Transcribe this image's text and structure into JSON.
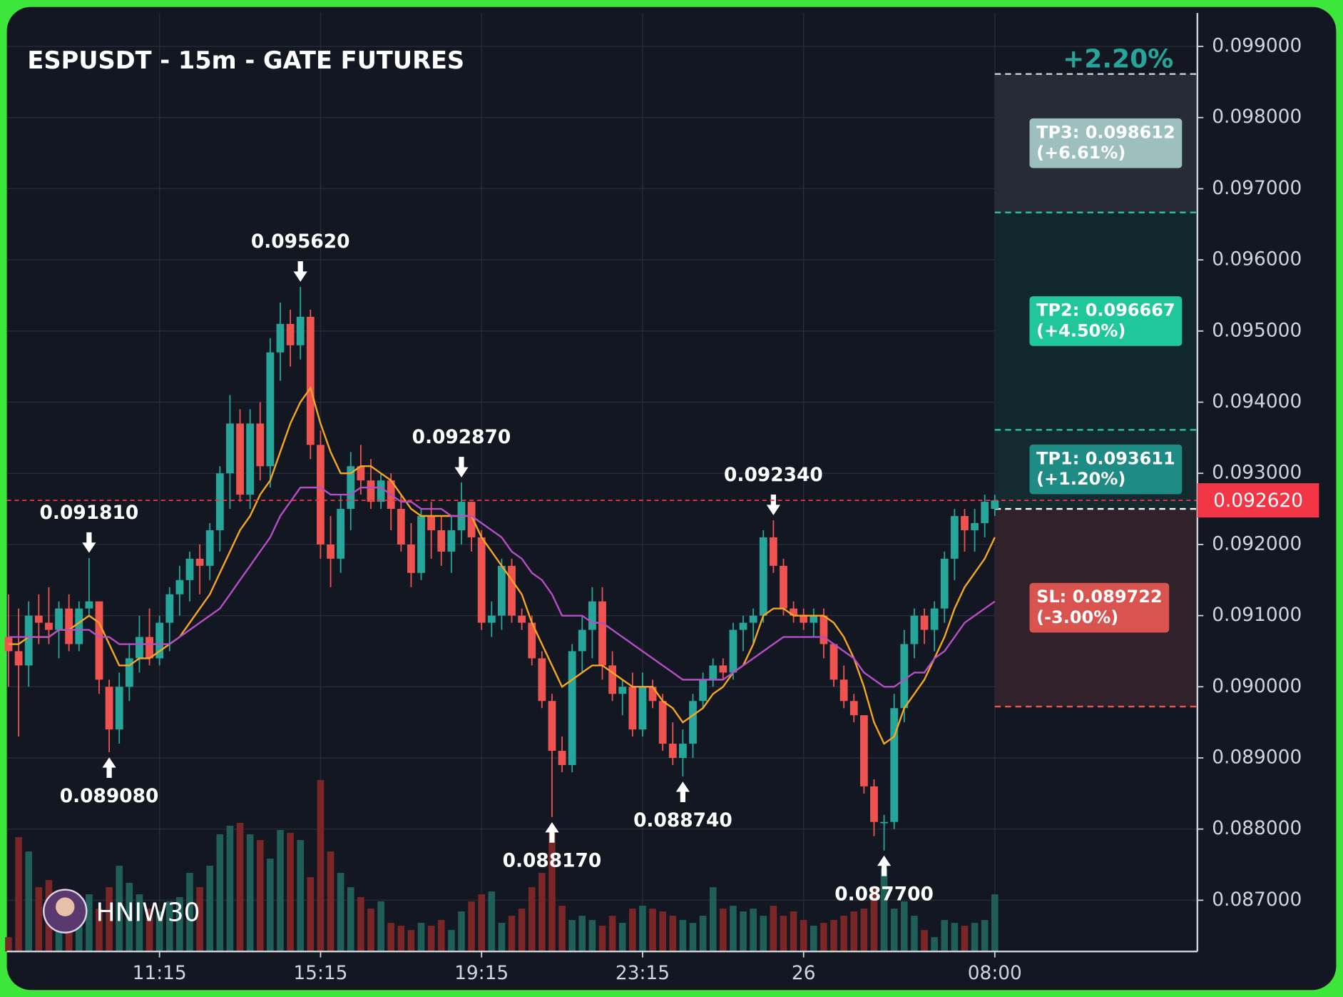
{
  "chart_data": {
    "type": "candlestick",
    "title": "ESPUSDT - 15m - GATE FUTURES",
    "watermark": "HNIW30",
    "up_color": "#26a69a",
    "down_color": "#ef5350",
    "volume_up_color": "#1f5f58",
    "volume_down_color": "#7b2626",
    "grid": true,
    "xlim": [
      -0.17,
      118.13
    ],
    "ylim": [
      0.08628,
      0.09947
    ],
    "xticks": [
      {
        "value": 15,
        "label": "11:15"
      },
      {
        "value": 31,
        "label": "15:15"
      },
      {
        "value": 47,
        "label": "19:15"
      },
      {
        "value": 63,
        "label": "23:15"
      },
      {
        "value": 79,
        "label": "26"
      },
      {
        "value": 98,
        "label": "08:00"
      }
    ],
    "yticks": [
      {
        "value": 0.087,
        "label": "0.087000"
      },
      {
        "value": 0.088,
        "label": "0.088000"
      },
      {
        "value": 0.089,
        "label": "0.089000"
      },
      {
        "value": 0.09,
        "label": "0.090000"
      },
      {
        "value": 0.091,
        "label": "0.091000"
      },
      {
        "value": 0.092,
        "label": "0.092000"
      },
      {
        "value": 0.093,
        "label": "0.093000"
      },
      {
        "value": 0.094,
        "label": "0.094000"
      },
      {
        "value": 0.095,
        "label": "0.095000"
      },
      {
        "value": 0.096,
        "label": "0.096000"
      },
      {
        "value": 0.097,
        "label": "0.097000"
      },
      {
        "value": 0.098,
        "label": "0.098000"
      },
      {
        "value": 0.099,
        "label": "0.099000"
      }
    ],
    "ohlc": [
      [
        0.0907,
        0.0913,
        0.09,
        0.0905
      ],
      [
        0.0905,
        0.0911,
        0.0893,
        0.0903
      ],
      [
        0.0903,
        0.0912,
        0.09,
        0.091
      ],
      [
        0.091,
        0.0913,
        0.0906,
        0.0909
      ],
      [
        0.0909,
        0.0914,
        0.0906,
        0.0908
      ],
      [
        0.0908,
        0.0912,
        0.0904,
        0.0911
      ],
      [
        0.0911,
        0.0913,
        0.0905,
        0.0906
      ],
      [
        0.0906,
        0.0912,
        0.0905,
        0.0911
      ],
      [
        0.0911,
        0.09181,
        0.091,
        0.0912
      ],
      [
        0.0912,
        0.0912,
        0.0899,
        0.0901
      ],
      [
        0.09,
        0.0901,
        0.08908,
        0.0894
      ],
      [
        0.0894,
        0.0902,
        0.0892,
        0.09
      ],
      [
        0.09,
        0.0906,
        0.0898,
        0.0904
      ],
      [
        0.0904,
        0.091,
        0.0902,
        0.0907
      ],
      [
        0.0907,
        0.0911,
        0.0903,
        0.0904
      ],
      [
        0.0904,
        0.091,
        0.0903,
        0.0909
      ],
      [
        0.0909,
        0.0914,
        0.0905,
        0.0913
      ],
      [
        0.0913,
        0.0917,
        0.091,
        0.0915
      ],
      [
        0.0915,
        0.0919,
        0.0912,
        0.0918
      ],
      [
        0.0918,
        0.092,
        0.0913,
        0.0917
      ],
      [
        0.0917,
        0.0923,
        0.0915,
        0.0922
      ],
      [
        0.0922,
        0.0931,
        0.0919,
        0.093
      ],
      [
        0.093,
        0.0941,
        0.0925,
        0.0937
      ],
      [
        0.0937,
        0.0939,
        0.0926,
        0.0927
      ],
      [
        0.0927,
        0.0939,
        0.0925,
        0.0937
      ],
      [
        0.0937,
        0.094,
        0.0929,
        0.0931
      ],
      [
        0.0931,
        0.0949,
        0.0928,
        0.0947
      ],
      [
        0.0947,
        0.0954,
        0.0943,
        0.0951
      ],
      [
        0.0951,
        0.0953,
        0.0945,
        0.0948
      ],
      [
        0.0948,
        0.09562,
        0.0946,
        0.0952
      ],
      [
        0.0952,
        0.0953,
        0.0932,
        0.0934
      ],
      [
        0.0934,
        0.0936,
        0.0918,
        0.092
      ],
      [
        0.092,
        0.0924,
        0.0914,
        0.0918
      ],
      [
        0.0918,
        0.0927,
        0.0916,
        0.0925
      ],
      [
        0.0925,
        0.0933,
        0.0922,
        0.0931
      ],
      [
        0.0931,
        0.0934,
        0.0927,
        0.0929
      ],
      [
        0.0929,
        0.0932,
        0.0925,
        0.0926
      ],
      [
        0.0926,
        0.093,
        0.0925,
        0.0929
      ],
      [
        0.0929,
        0.093,
        0.0922,
        0.0925
      ],
      [
        0.0925,
        0.0927,
        0.0919,
        0.092
      ],
      [
        0.092,
        0.0923,
        0.0914,
        0.0916
      ],
      [
        0.0916,
        0.0925,
        0.0915,
        0.0924
      ],
      [
        0.0924,
        0.0926,
        0.0918,
        0.0922
      ],
      [
        0.0922,
        0.0924,
        0.0917,
        0.0919
      ],
      [
        0.0919,
        0.0924,
        0.0916,
        0.0922
      ],
      [
        0.0922,
        0.09287,
        0.092,
        0.0926
      ],
      [
        0.0926,
        0.0926,
        0.0919,
        0.0921
      ],
      [
        0.0921,
        0.0922,
        0.0908,
        0.0909
      ],
      [
        0.0909,
        0.0912,
        0.0907,
        0.091
      ],
      [
        0.091,
        0.0918,
        0.0908,
        0.0917
      ],
      [
        0.0917,
        0.0918,
        0.0909,
        0.091
      ],
      [
        0.091,
        0.0911,
        0.0908,
        0.0909
      ],
      [
        0.0909,
        0.091,
        0.0903,
        0.0904
      ],
      [
        0.0904,
        0.0905,
        0.0897,
        0.0898
      ],
      [
        0.0898,
        0.0899,
        0.08817,
        0.0891
      ],
      [
        0.0891,
        0.0893,
        0.0888,
        0.0889
      ],
      [
        0.0889,
        0.0906,
        0.0888,
        0.0905
      ],
      [
        0.0905,
        0.091,
        0.0902,
        0.0908
      ],
      [
        0.0908,
        0.0914,
        0.0904,
        0.0912
      ],
      [
        0.0912,
        0.0914,
        0.0901,
        0.0903
      ],
      [
        0.0903,
        0.0905,
        0.0898,
        0.0899
      ],
      [
        0.0899,
        0.0901,
        0.0896,
        0.09
      ],
      [
        0.09,
        0.0902,
        0.0893,
        0.0894
      ],
      [
        0.0894,
        0.0902,
        0.0893,
        0.09
      ],
      [
        0.09,
        0.0901,
        0.0897,
        0.0898
      ],
      [
        0.0898,
        0.0899,
        0.0891,
        0.0892
      ],
      [
        0.0892,
        0.0895,
        0.0889,
        0.089
      ],
      [
        0.089,
        0.0894,
        0.08874,
        0.0892
      ],
      [
        0.0892,
        0.0899,
        0.089,
        0.0898
      ],
      [
        0.0898,
        0.0902,
        0.0897,
        0.0901
      ],
      [
        0.0901,
        0.0904,
        0.09,
        0.0903
      ],
      [
        0.0903,
        0.0904,
        0.0901,
        0.0902
      ],
      [
        0.0902,
        0.0909,
        0.0901,
        0.0908
      ],
      [
        0.0908,
        0.091,
        0.0905,
        0.0909
      ],
      [
        0.0909,
        0.0911,
        0.0906,
        0.091
      ],
      [
        0.091,
        0.0922,
        0.0909,
        0.0921
      ],
      [
        0.0921,
        0.09234,
        0.0916,
        0.0917
      ],
      [
        0.0917,
        0.0918,
        0.091,
        0.0911
      ],
      [
        0.0911,
        0.0912,
        0.0909,
        0.091
      ],
      [
        0.091,
        0.0911,
        0.0908,
        0.0909
      ],
      [
        0.0909,
        0.0911,
        0.0907,
        0.091
      ],
      [
        0.091,
        0.0911,
        0.0904,
        0.0906
      ],
      [
        0.0906,
        0.0906,
        0.09,
        0.0901
      ],
      [
        0.0901,
        0.0903,
        0.0897,
        0.0898
      ],
      [
        0.0898,
        0.0899,
        0.0895,
        0.0896
      ],
      [
        0.0896,
        0.0896,
        0.0885,
        0.0886
      ],
      [
        0.0886,
        0.0887,
        0.0879,
        0.0881
      ],
      [
        0.0881,
        0.0882,
        0.0877,
        0.0881
      ],
      [
        0.0881,
        0.0899,
        0.088,
        0.0897
      ],
      [
        0.0897,
        0.0908,
        0.0895,
        0.0906
      ],
      [
        0.0906,
        0.0911,
        0.0904,
        0.091
      ],
      [
        0.091,
        0.0911,
        0.0906,
        0.0908
      ],
      [
        0.0908,
        0.0912,
        0.0905,
        0.0911
      ],
      [
        0.0911,
        0.0919,
        0.0909,
        0.0918
      ],
      [
        0.0918,
        0.0925,
        0.0915,
        0.0924
      ],
      [
        0.0924,
        0.0925,
        0.0919,
        0.0922
      ],
      [
        0.0922,
        0.0925,
        0.0919,
        0.0923
      ],
      [
        0.0923,
        0.0927,
        0.0921,
        0.0926
      ],
      [
        0.0925,
        0.0927,
        0.0924,
        0.09262
      ]
    ],
    "volume": [
      10,
      80,
      70,
      45,
      50,
      40,
      28,
      35,
      40,
      30,
      45,
      60,
      48,
      40,
      30,
      28,
      35,
      38,
      55,
      45,
      60,
      82,
      88,
      90,
      82,
      78,
      65,
      85,
      83,
      78,
      52,
      120,
      70,
      55,
      45,
      38,
      30,
      35,
      20,
      18,
      15,
      20,
      18,
      22,
      15,
      28,
      35,
      40,
      42,
      20,
      25,
      30,
      45,
      55,
      85,
      32,
      22,
      25,
      22,
      18,
      25,
      20,
      30,
      32,
      30,
      28,
      25,
      22,
      20,
      25,
      45,
      30,
      32,
      28,
      30,
      25,
      32,
      25,
      28,
      22,
      18,
      20,
      22,
      25,
      28,
      30,
      45,
      58,
      30,
      35,
      25,
      15,
      10,
      22,
      20,
      18,
      20,
      22,
      40
    ],
    "lines": [
      {
        "color": "#f5a623",
        "values": [
          0.0906,
          0.0906,
          0.0907,
          0.0907,
          0.0907,
          0.0908,
          0.0908,
          0.0909,
          0.091,
          0.0909,
          0.0906,
          0.0903,
          0.0903,
          0.0904,
          0.0904,
          0.0905,
          0.0906,
          0.0907,
          0.0909,
          0.0911,
          0.0913,
          0.0916,
          0.0919,
          0.0922,
          0.0924,
          0.0927,
          0.0929,
          0.0933,
          0.0937,
          0.094,
          0.0942,
          0.0937,
          0.0933,
          0.093,
          0.093,
          0.0931,
          0.0931,
          0.093,
          0.0929,
          0.0927,
          0.0925,
          0.0924,
          0.0924,
          0.0924,
          0.0924,
          0.0924,
          0.0924,
          0.0921,
          0.0919,
          0.0917,
          0.0915,
          0.0913,
          0.0909,
          0.0906,
          0.0903,
          0.09,
          0.0901,
          0.0902,
          0.0903,
          0.0903,
          0.0902,
          0.0901,
          0.09,
          0.09,
          0.09,
          0.0898,
          0.0897,
          0.0895,
          0.0896,
          0.0897,
          0.0899,
          0.09,
          0.0902,
          0.0903,
          0.0906,
          0.091,
          0.0911,
          0.0911,
          0.091,
          0.091,
          0.091,
          0.091,
          0.0909,
          0.0907,
          0.0904,
          0.09,
          0.0895,
          0.0892,
          0.0893,
          0.0897,
          0.0899,
          0.0901,
          0.0904,
          0.0907,
          0.0911,
          0.0914,
          0.0916,
          0.0918,
          0.0921
        ]
      },
      {
        "color": "#b34fc4",
        "values": [
          0.0907,
          0.0907,
          0.0907,
          0.0907,
          0.0907,
          0.0908,
          0.0908,
          0.0908,
          0.0908,
          0.0907,
          0.0907,
          0.0906,
          0.0906,
          0.0906,
          0.0906,
          0.0906,
          0.0906,
          0.0907,
          0.0908,
          0.0909,
          0.091,
          0.0911,
          0.0913,
          0.0915,
          0.0917,
          0.0919,
          0.0921,
          0.0924,
          0.0926,
          0.0928,
          0.0928,
          0.0928,
          0.0927,
          0.0927,
          0.0927,
          0.0928,
          0.0928,
          0.0928,
          0.0927,
          0.0926,
          0.0926,
          0.0925,
          0.0925,
          0.0925,
          0.0924,
          0.0924,
          0.0924,
          0.0923,
          0.0922,
          0.0921,
          0.0919,
          0.0918,
          0.0916,
          0.0915,
          0.0913,
          0.091,
          0.091,
          0.091,
          0.0909,
          0.0909,
          0.0908,
          0.0907,
          0.0906,
          0.0905,
          0.0904,
          0.0903,
          0.0902,
          0.0901,
          0.0901,
          0.0901,
          0.0901,
          0.0901,
          0.0902,
          0.0903,
          0.0904,
          0.0905,
          0.0906,
          0.0907,
          0.0907,
          0.0907,
          0.0907,
          0.0907,
          0.0906,
          0.0905,
          0.0904,
          0.0902,
          0.0901,
          0.09,
          0.09,
          0.0901,
          0.0902,
          0.0902,
          0.0904,
          0.0905,
          0.0907,
          0.0909,
          0.091,
          0.0911,
          0.0912
        ]
      }
    ],
    "annotations": [
      {
        "label": "0.091810",
        "value": 0.09181,
        "x": 8,
        "position": "above"
      },
      {
        "label": "0.089080",
        "value": 0.08908,
        "x": 10,
        "position": "below"
      },
      {
        "label": "0.095620",
        "value": 0.09562,
        "x": 29,
        "position": "above"
      },
      {
        "label": "0.092870",
        "value": 0.09287,
        "x": 45,
        "position": "above"
      },
      {
        "label": "0.088170",
        "value": 0.08817,
        "x": 54,
        "position": "below"
      },
      {
        "label": "0.088740",
        "value": 0.08874,
        "x": 67,
        "position": "below"
      },
      {
        "label": "0.092340",
        "value": 0.09234,
        "x": 76,
        "position": "above"
      },
      {
        "label": "0.087700",
        "value": 0.0877,
        "x": 87,
        "position": "below"
      }
    ],
    "last_price": {
      "value": 0.09262,
      "label": "0.092620",
      "color": "#f23645"
    },
    "trade": {
      "start": 98,
      "entry": 0.0925,
      "entry_color": "#ffffff",
      "change": "+2.20%",
      "change_color": "#26a69a",
      "levels": [
        {
          "label": "SL: 0.089722",
          "note": "(-3.00%)",
          "value": 0.089722,
          "line_color": "#ef5350",
          "zone_color": "#30212a",
          "box_color": "#d9534f"
        },
        {
          "label": "TP1: 0.093611",
          "note": "(+1.20%)",
          "value": 0.093611,
          "line_color": "#26c6a0",
          "zone_color": "#132a30",
          "box_color": "#1e8c84"
        },
        {
          "label": "TP2: 0.096667",
          "note": "(+4.50%)",
          "value": 0.096667,
          "line_color": "#26c6a0",
          "zone_color": "#10272d",
          "box_color": "#1fc79b"
        },
        {
          "label": "TP3: 0.098612",
          "note": "(+6.61%)",
          "value": 0.098612,
          "line_color": "#c8d2d2",
          "zone_color": "#262b35",
          "box_color": "#9dbfbe"
        }
      ]
    }
  }
}
